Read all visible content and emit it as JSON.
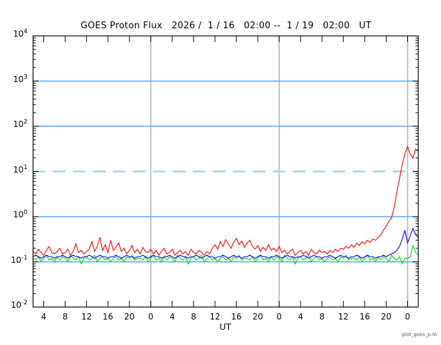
{
  "watermark": "plot_goes_p.m",
  "chart_data": {
    "type": "line",
    "title": "GOES Proton Flux   2026 /  1 / 16   02:00 --  1 / 19   02:00   UT",
    "xlabel": "UT",
    "ylabel": "",
    "x_start_hour": 0,
    "x_end_hour": 72,
    "x_dt": 0.5,
    "ylim_exponents": [
      -2,
      4
    ],
    "y_tick_exponents": [
      4,
      3,
      2,
      1,
      0,
      -1,
      -2
    ],
    "x_ticks": {
      "hours": [
        2,
        6,
        10,
        14,
        18,
        22,
        26,
        30,
        34,
        38,
        42,
        46,
        50,
        54,
        58,
        62,
        66,
        70
      ],
      "labels": [
        "4",
        "8",
        "12",
        "16",
        "20",
        "0",
        "4",
        "8",
        "12",
        "16",
        "20",
        "0",
        "4",
        "8",
        "12",
        "16",
        "20",
        "0"
      ]
    },
    "grid": {
      "h_solid_exponents": [
        3,
        2,
        0,
        -1
      ],
      "h_dashed_exponents": [
        1
      ],
      "v_day_hours": [
        22,
        46,
        70
      ],
      "h_color": "#55aaee",
      "h_dashed_color": "#a9d3f4",
      "v_color": "#bcbcbc"
    },
    "series": [
      {
        "name": "green",
        "color": "#00d500",
        "values": [
          0.12,
          0.11,
          0.13,
          0.1,
          0.12,
          0.14,
          0.11,
          0.12,
          0.1,
          0.13,
          0.11,
          0.13,
          0.12,
          0.1,
          0.14,
          0.12,
          0.11,
          0.13,
          0.09,
          0.12,
          0.13,
          0.11,
          0.12,
          0.14,
          0.1,
          0.12,
          0.13,
          0.11,
          0.12,
          0.1,
          0.12,
          0.13,
          0.11,
          0.12,
          0.1,
          0.13,
          0.12,
          0.14,
          0.11,
          0.12,
          0.12,
          0.11,
          0.13,
          0.1,
          0.12,
          0.14,
          0.11,
          0.12,
          0.1,
          0.13,
          0.11,
          0.13,
          0.12,
          0.1,
          0.14,
          0.12,
          0.11,
          0.13,
          0.09,
          0.12,
          0.13,
          0.11,
          0.12,
          0.14,
          0.1,
          0.12,
          0.13,
          0.11,
          0.12,
          0.1,
          0.12,
          0.13,
          0.11,
          0.12,
          0.1,
          0.13,
          0.12,
          0.14,
          0.11,
          0.12,
          0.12,
          0.11,
          0.13,
          0.1,
          0.12,
          0.14,
          0.11,
          0.12,
          0.1,
          0.13,
          0.11,
          0.13,
          0.12,
          0.1,
          0.14,
          0.12,
          0.11,
          0.13,
          0.09,
          0.12,
          0.13,
          0.11,
          0.12,
          0.14,
          0.1,
          0.12,
          0.13,
          0.11,
          0.12,
          0.1,
          0.12,
          0.13,
          0.11,
          0.12,
          0.1,
          0.13,
          0.12,
          0.14,
          0.11,
          0.12,
          0.12,
          0.11,
          0.13,
          0.1,
          0.12,
          0.14,
          0.11,
          0.12,
          0.1,
          0.13,
          0.11,
          0.13,
          0.12,
          0.1,
          0.14,
          0.12,
          0.11,
          0.13,
          0.09,
          0.12,
          0.12,
          0.13,
          0.23,
          0.16,
          0.14
        ]
      },
      {
        "name": "blue",
        "color": "#0000f0",
        "values": [
          0.13,
          0.14,
          0.13,
          0.12,
          0.13,
          0.14,
          0.13,
          0.13,
          0.12,
          0.13,
          0.13,
          0.14,
          0.13,
          0.12,
          0.13,
          0.14,
          0.13,
          0.13,
          0.12,
          0.13,
          0.13,
          0.14,
          0.13,
          0.12,
          0.13,
          0.14,
          0.13,
          0.13,
          0.12,
          0.13,
          0.13,
          0.14,
          0.13,
          0.12,
          0.13,
          0.14,
          0.13,
          0.13,
          0.12,
          0.13,
          0.13,
          0.14,
          0.13,
          0.12,
          0.13,
          0.14,
          0.13,
          0.13,
          0.12,
          0.13,
          0.13,
          0.14,
          0.13,
          0.12,
          0.13,
          0.14,
          0.13,
          0.13,
          0.12,
          0.13,
          0.13,
          0.14,
          0.13,
          0.12,
          0.13,
          0.14,
          0.13,
          0.13,
          0.12,
          0.13,
          0.13,
          0.14,
          0.13,
          0.12,
          0.13,
          0.14,
          0.13,
          0.13,
          0.12,
          0.13,
          0.13,
          0.14,
          0.13,
          0.12,
          0.13,
          0.14,
          0.13,
          0.13,
          0.12,
          0.13,
          0.13,
          0.14,
          0.13,
          0.12,
          0.13,
          0.14,
          0.13,
          0.13,
          0.12,
          0.13,
          0.13,
          0.14,
          0.13,
          0.12,
          0.13,
          0.14,
          0.13,
          0.13,
          0.12,
          0.13,
          0.13,
          0.14,
          0.13,
          0.12,
          0.13,
          0.14,
          0.13,
          0.13,
          0.12,
          0.13,
          0.13,
          0.14,
          0.13,
          0.12,
          0.13,
          0.14,
          0.13,
          0.13,
          0.12,
          0.13,
          0.13,
          0.14,
          0.13,
          0.14,
          0.15,
          0.16,
          0.18,
          0.22,
          0.32,
          0.5,
          0.26,
          0.38,
          0.55,
          0.4,
          0.35
        ]
      },
      {
        "name": "red",
        "color": "#fb0000",
        "values": [
          0.17,
          0.15,
          0.19,
          0.16,
          0.14,
          0.18,
          0.22,
          0.16,
          0.15,
          0.17,
          0.2,
          0.15,
          0.16,
          0.19,
          0.14,
          0.17,
          0.25,
          0.16,
          0.18,
          0.15,
          0.17,
          0.19,
          0.28,
          0.17,
          0.22,
          0.35,
          0.18,
          0.24,
          0.16,
          0.3,
          0.18,
          0.21,
          0.26,
          0.17,
          0.2,
          0.15,
          0.18,
          0.23,
          0.16,
          0.19,
          0.15,
          0.21,
          0.17,
          0.16,
          0.19,
          0.15,
          0.18,
          0.14,
          0.17,
          0.2,
          0.15,
          0.16,
          0.19,
          0.14,
          0.16,
          0.18,
          0.15,
          0.17,
          0.14,
          0.19,
          0.16,
          0.15,
          0.18,
          0.16,
          0.14,
          0.17,
          0.15,
          0.2,
          0.24,
          0.19,
          0.28,
          0.22,
          0.31,
          0.25,
          0.2,
          0.27,
          0.33,
          0.24,
          0.29,
          0.21,
          0.26,
          0.3,
          0.22,
          0.19,
          0.23,
          0.17,
          0.21,
          0.18,
          0.24,
          0.18,
          0.2,
          0.17,
          0.22,
          0.16,
          0.18,
          0.15,
          0.17,
          0.19,
          0.14,
          0.16,
          0.18,
          0.15,
          0.17,
          0.14,
          0.19,
          0.16,
          0.15,
          0.18,
          0.16,
          0.17,
          0.15,
          0.18,
          0.16,
          0.19,
          0.17,
          0.2,
          0.19,
          0.22,
          0.2,
          0.24,
          0.21,
          0.26,
          0.23,
          0.28,
          0.25,
          0.3,
          0.27,
          0.32,
          0.3,
          0.35,
          0.4,
          0.5,
          0.62,
          0.78,
          0.95,
          1.6,
          3.5,
          7.0,
          14,
          25,
          36,
          24,
          20,
          31,
          28
        ]
      }
    ]
  }
}
